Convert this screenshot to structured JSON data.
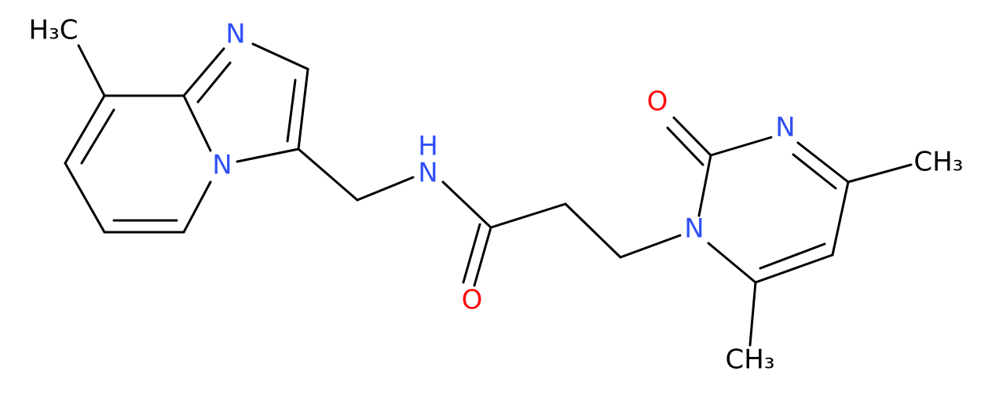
{
  "atoms": [
    {
      "label": "H₃C"
    },
    {
      "label": "N"
    },
    {
      "label": "N"
    },
    {
      "label": "N"
    },
    {
      "label": "H"
    },
    {
      "label": "O"
    },
    {
      "label": "N"
    },
    {
      "label": "O"
    },
    {
      "label": "N"
    },
    {
      "label": "CH₃"
    },
    {
      "label": "CH₃"
    }
  ]
}
